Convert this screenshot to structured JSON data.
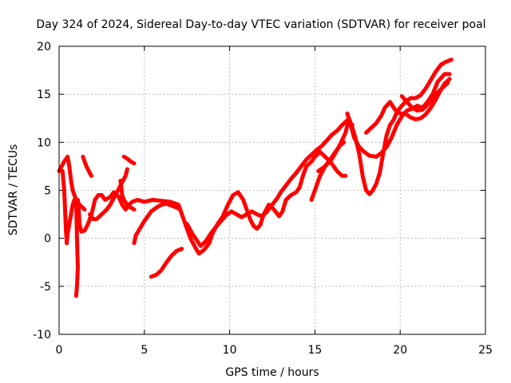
{
  "chart_data": {
    "type": "scatter",
    "title": "Day 324 of 2024, Sidereal Day-to-day VTEC variation (SDTVAR) for receiver poal",
    "xlabel": "GPS time / hours",
    "ylabel": "SDTVAR / TECUs",
    "xlim": [
      0,
      25
    ],
    "ylim": [
      -10,
      20
    ],
    "xticks": [
      0,
      5,
      10,
      15,
      20,
      25
    ],
    "yticks": [
      -10,
      -5,
      0,
      5,
      10,
      15,
      20
    ],
    "xtick_labels": [
      "0",
      "5",
      "10",
      "15",
      "20",
      "25"
    ],
    "ytick_labels": [
      "-10",
      "-5",
      "0",
      "5",
      "10",
      "15",
      "20"
    ],
    "grid": true,
    "marker": "+",
    "color": "#ff0000",
    "series": [
      {
        "name": "segment-1",
        "points": [
          [
            0,
            7
          ],
          [
            0.3,
            8
          ],
          [
            0.5,
            8.5
          ],
          [
            0.6,
            7.5
          ],
          [
            0.7,
            6
          ],
          [
            0.8,
            5
          ],
          [
            0.9,
            4.5
          ],
          [
            1.0,
            4
          ],
          [
            1.2,
            3.5
          ],
          [
            1.5,
            3
          ]
        ]
      },
      {
        "name": "segment-2",
        "points": [
          [
            0.2,
            7
          ],
          [
            0.3,
            5
          ],
          [
            0.35,
            3
          ],
          [
            0.4,
            1
          ],
          [
            0.45,
            -0.5
          ],
          [
            0.5,
            0.5
          ],
          [
            0.6,
            1.5
          ],
          [
            0.7,
            2.5
          ],
          [
            0.8,
            3.5
          ],
          [
            0.9,
            4
          ]
        ]
      },
      {
        "name": "segment-3",
        "points": [
          [
            1.0,
            4
          ],
          [
            1.05,
            0
          ],
          [
            1.1,
            -3
          ],
          [
            1.05,
            -5
          ],
          [
            1.0,
            -6
          ]
        ]
      },
      {
        "name": "segment-4",
        "points": [
          [
            1.1,
            4
          ],
          [
            1.15,
            3
          ],
          [
            1.2,
            1.5
          ],
          [
            1.3,
            0.7
          ],
          [
            1.5,
            0.8
          ],
          [
            1.7,
            1.5
          ],
          [
            1.9,
            2.5
          ],
          [
            2.0,
            3.2
          ],
          [
            2.1,
            4
          ],
          [
            2.3,
            4.5
          ],
          [
            2.5,
            4.5
          ],
          [
            2.7,
            4
          ],
          [
            3.0,
            4.3
          ],
          [
            3.2,
            4.8
          ],
          [
            3.5,
            4.3
          ],
          [
            3.7,
            3.5
          ],
          [
            3.9,
            3
          ],
          [
            4.1,
            3.5
          ],
          [
            4.3,
            3.8
          ],
          [
            4.6,
            4
          ],
          [
            5.0,
            3.8
          ],
          [
            5.5,
            4
          ],
          [
            6.0,
            3.9
          ],
          [
            6.5,
            3.8
          ],
          [
            7.0,
            3.5
          ],
          [
            7.2,
            2.5
          ],
          [
            7.5,
            1
          ],
          [
            7.7,
            0
          ],
          [
            8.0,
            -1
          ],
          [
            8.2,
            -1.6
          ],
          [
            8.5,
            -1.2
          ],
          [
            8.8,
            -0.5
          ],
          [
            9.0,
            0.5
          ],
          [
            9.3,
            1.5
          ],
          [
            9.6,
            2.3
          ],
          [
            9.9,
            3.5
          ],
          [
            10.2,
            4.5
          ],
          [
            10.5,
            4.8
          ],
          [
            10.8,
            4
          ],
          [
            11.0,
            3
          ],
          [
            11.2,
            2
          ],
          [
            11.4,
            1.3
          ],
          [
            11.6,
            1
          ],
          [
            11.8,
            1.4
          ],
          [
            12.0,
            2.5
          ],
          [
            12.3,
            3.5
          ],
          [
            12.6,
            3
          ],
          [
            12.9,
            2.3
          ],
          [
            13.1,
            2.8
          ],
          [
            13.3,
            4
          ],
          [
            13.6,
            4.5
          ],
          [
            13.9,
            4.8
          ],
          [
            14.1,
            5.3
          ],
          [
            14.3,
            6.5
          ],
          [
            14.5,
            7.5
          ],
          [
            14.8,
            8
          ],
          [
            15.0,
            8.5
          ],
          [
            15.3,
            9
          ],
          [
            15.6,
            8.5
          ],
          [
            15.9,
            8
          ],
          [
            16.1,
            7.5
          ],
          [
            16.3,
            7
          ],
          [
            16.6,
            6.5
          ],
          [
            16.8,
            6.5
          ]
        ]
      },
      {
        "name": "segment-5",
        "points": [
          [
            1.4,
            8.5
          ],
          [
            1.5,
            8
          ],
          [
            1.6,
            7.5
          ],
          [
            1.8,
            6.8
          ],
          [
            1.9,
            6.5
          ]
        ]
      },
      {
        "name": "segment-6",
        "points": [
          [
            1.8,
            2.5
          ],
          [
            2.0,
            2
          ],
          [
            2.2,
            2
          ],
          [
            2.5,
            2.5
          ],
          [
            2.8,
            3
          ],
          [
            3.0,
            3.5
          ],
          [
            3.3,
            4.5
          ],
          [
            3.6,
            5.5
          ],
          [
            3.9,
            6.5
          ],
          [
            4.0,
            7.2
          ]
        ]
      },
      {
        "name": "segment-7",
        "points": [
          [
            3.8,
            8.5
          ],
          [
            4.0,
            8.3
          ],
          [
            4.2,
            8
          ],
          [
            4.4,
            7.8
          ]
        ]
      },
      {
        "name": "segment-8",
        "points": [
          [
            3.6,
            6
          ],
          [
            3.7,
            4.5
          ],
          [
            3.8,
            4
          ],
          [
            4.0,
            3.5
          ],
          [
            4.2,
            3.2
          ],
          [
            4.4,
            3
          ]
        ]
      },
      {
        "name": "segment-9",
        "points": [
          [
            4.4,
            -0.5
          ],
          [
            4.5,
            0.3
          ],
          [
            4.6,
            0.6
          ],
          [
            4.8,
            1.2
          ],
          [
            5.0,
            1.8
          ],
          [
            5.2,
            2.3
          ],
          [
            5.4,
            2.8
          ],
          [
            5.7,
            3.2
          ],
          [
            6.0,
            3.5
          ],
          [
            6.3,
            3.6
          ],
          [
            6.6,
            3.4
          ],
          [
            6.9,
            3.2
          ],
          [
            7.1,
            3
          ]
        ]
      },
      {
        "name": "segment-10",
        "points": [
          [
            5.4,
            -4
          ],
          [
            5.7,
            -3.8
          ],
          [
            6.0,
            -3.3
          ],
          [
            6.3,
            -2.5
          ],
          [
            6.6,
            -1.8
          ],
          [
            6.9,
            -1.3
          ],
          [
            7.2,
            -1.1
          ]
        ]
      },
      {
        "name": "segment-11",
        "points": [
          [
            7.5,
            1.5
          ],
          [
            7.8,
            0.5
          ],
          [
            8.0,
            0
          ],
          [
            8.3,
            -0.8
          ],
          [
            8.6,
            -0.3
          ],
          [
            8.9,
            0.5
          ],
          [
            9.2,
            1.2
          ],
          [
            9.5,
            1.8
          ],
          [
            9.8,
            2.4
          ],
          [
            10.1,
            2.8
          ],
          [
            10.4,
            2.5
          ],
          [
            10.7,
            2.2
          ],
          [
            11.0,
            2.5
          ],
          [
            11.3,
            2.8
          ],
          [
            11.6,
            2.5
          ],
          [
            11.9,
            2.3
          ],
          [
            12.2,
            2.8
          ],
          [
            12.5,
            3.5
          ],
          [
            12.8,
            4.2
          ],
          [
            13.0,
            4.8
          ],
          [
            13.3,
            5.5
          ],
          [
            13.6,
            6.2
          ],
          [
            13.9,
            6.8
          ],
          [
            14.2,
            7.5
          ],
          [
            14.5,
            8.2
          ],
          [
            14.8,
            8.7
          ],
          [
            15.1,
            9.2
          ],
          [
            15.4,
            9.6
          ],
          [
            15.7,
            10.2
          ],
          [
            16.0,
            10.8
          ],
          [
            16.3,
            11.2
          ],
          [
            16.6,
            11.8
          ],
          [
            16.9,
            12.3
          ],
          [
            17.2,
            11.8
          ]
        ]
      },
      {
        "name": "segment-12",
        "points": [
          [
            14.8,
            4
          ],
          [
            15.0,
            5
          ],
          [
            15.3,
            6.5
          ],
          [
            15.6,
            7.5
          ],
          [
            15.9,
            8.2
          ],
          [
            16.2,
            9
          ],
          [
            16.5,
            9.7
          ],
          [
            16.7,
            10
          ]
        ]
      },
      {
        "name": "segment-13",
        "points": [
          [
            15.2,
            7
          ],
          [
            15.6,
            7.5
          ],
          [
            16.0,
            8.3
          ],
          [
            16.4,
            9.5
          ],
          [
            16.8,
            11
          ],
          [
            17.0,
            12.5
          ],
          [
            17.2,
            11.5
          ],
          [
            17.4,
            10.3
          ],
          [
            17.6,
            8.8
          ],
          [
            17.8,
            6.5
          ],
          [
            18.0,
            5
          ],
          [
            18.2,
            4.6
          ],
          [
            18.4,
            5
          ],
          [
            18.6,
            5.7
          ],
          [
            18.8,
            6.8
          ],
          [
            19.0,
            8.8
          ],
          [
            19.2,
            10.7
          ],
          [
            19.4,
            11.8
          ],
          [
            19.6,
            12.3
          ],
          [
            19.8,
            13.1
          ],
          [
            20.0,
            13.6
          ],
          [
            20.3,
            14.2
          ],
          [
            20.6,
            14.6
          ],
          [
            20.9,
            14.6
          ],
          [
            21.2,
            14.9
          ],
          [
            21.5,
            15.6
          ],
          [
            21.8,
            16.5
          ],
          [
            22.1,
            17.4
          ],
          [
            22.4,
            18.1
          ],
          [
            22.7,
            18.4
          ],
          [
            23.0,
            18.6
          ]
        ]
      },
      {
        "name": "segment-14",
        "points": [
          [
            16.9,
            13
          ],
          [
            17.1,
            11.8
          ],
          [
            17.3,
            10.5
          ],
          [
            17.6,
            9.5
          ],
          [
            17.9,
            9
          ],
          [
            18.2,
            8.6
          ],
          [
            18.6,
            8.5
          ],
          [
            18.9,
            8.9
          ],
          [
            19.2,
            9.5
          ],
          [
            19.5,
            10.5
          ],
          [
            19.8,
            11.8
          ],
          [
            20.1,
            12.7
          ],
          [
            20.4,
            13.3
          ],
          [
            20.7,
            13.5
          ],
          [
            21.0,
            13.8
          ],
          [
            21.3,
            13.6
          ],
          [
            21.6,
            14.2
          ],
          [
            21.9,
            15
          ],
          [
            22.2,
            16.3
          ],
          [
            22.6,
            17.1
          ],
          [
            22.9,
            17.1
          ]
        ]
      },
      {
        "name": "segment-15",
        "points": [
          [
            18.0,
            11
          ],
          [
            18.3,
            11.5
          ],
          [
            18.6,
            12
          ],
          [
            18.9,
            12.8
          ],
          [
            19.1,
            13.6
          ],
          [
            19.4,
            14.2
          ],
          [
            19.7,
            13.4
          ],
          [
            20.0,
            13
          ],
          [
            20.3,
            13
          ],
          [
            20.6,
            12.6
          ],
          [
            20.9,
            12.4
          ],
          [
            21.2,
            12.5
          ],
          [
            21.5,
            12.9
          ],
          [
            21.8,
            13.6
          ],
          [
            22.1,
            14.5
          ],
          [
            22.3,
            15.2
          ],
          [
            22.6,
            16.1
          ],
          [
            22.9,
            16.6
          ]
        ]
      },
      {
        "name": "segment-16",
        "points": [
          [
            20.1,
            14.8
          ],
          [
            20.4,
            14.2
          ],
          [
            20.7,
            13.6
          ],
          [
            21.0,
            13.3
          ],
          [
            21.3,
            13.4
          ],
          [
            21.6,
            13.9
          ],
          [
            21.9,
            14.6
          ],
          [
            22.2,
            15.2
          ],
          [
            22.5,
            15.7
          ],
          [
            22.8,
            16.2
          ]
        ]
      }
    ]
  }
}
